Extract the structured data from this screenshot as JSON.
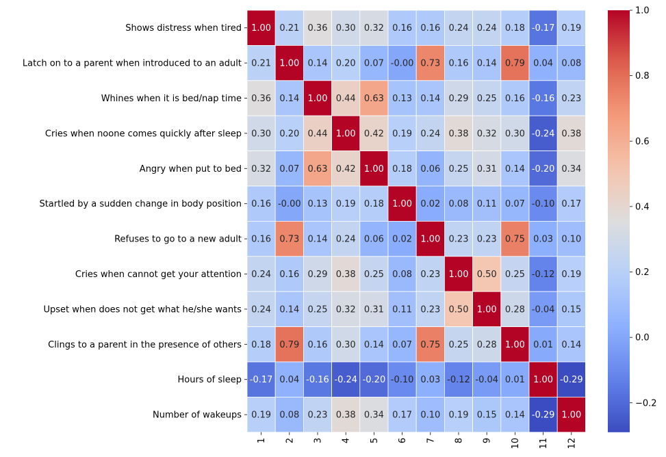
{
  "chart_data": {
    "type": "heatmap",
    "title": "",
    "xlabel": "",
    "ylabel": "",
    "row_labels": [
      "Shows distress when tired",
      "Latch on to a parent when introduced to an adult",
      "Whines when it is bed/nap time",
      "Cries when noone comes quickly after sleep",
      "Angry when put to bed",
      "Startled by a sudden change in body position",
      "Refuses to go to a new adult",
      "Cries when cannot get your attention",
      "Upset when does not get what he/she wants",
      "Clings to a parent in the presence of others",
      "Hours of sleep",
      "Number of wakeups"
    ],
    "col_labels": [
      "1",
      "2",
      "3",
      "4",
      "5",
      "6",
      "7",
      "8",
      "9",
      "10",
      "11",
      "12"
    ],
    "cell_labels": [
      [
        "1.00",
        "0.21",
        "0.36",
        "0.30",
        "0.32",
        "0.16",
        "0.16",
        "0.24",
        "0.24",
        "0.18",
        "-0.17",
        "0.19"
      ],
      [
        "0.21",
        "1.00",
        "0.14",
        "0.20",
        "0.07",
        "-0.00",
        "0.73",
        "0.16",
        "0.14",
        "0.79",
        "0.04",
        "0.08"
      ],
      [
        "0.36",
        "0.14",
        "1.00",
        "0.44",
        "0.63",
        "0.13",
        "0.14",
        "0.29",
        "0.25",
        "0.16",
        "-0.16",
        "0.23"
      ],
      [
        "0.30",
        "0.20",
        "0.44",
        "1.00",
        "0.42",
        "0.19",
        "0.24",
        "0.38",
        "0.32",
        "0.30",
        "-0.24",
        "0.38"
      ],
      [
        "0.32",
        "0.07",
        "0.63",
        "0.42",
        "1.00",
        "0.18",
        "0.06",
        "0.25",
        "0.31",
        "0.14",
        "-0.20",
        "0.34"
      ],
      [
        "0.16",
        "-0.00",
        "0.13",
        "0.19",
        "0.18",
        "1.00",
        "0.02",
        "0.08",
        "0.11",
        "0.07",
        "-0.10",
        "0.17"
      ],
      [
        "0.16",
        "0.73",
        "0.14",
        "0.24",
        "0.06",
        "0.02",
        "1.00",
        "0.23",
        "0.23",
        "0.75",
        "0.03",
        "0.10"
      ],
      [
        "0.24",
        "0.16",
        "0.29",
        "0.38",
        "0.25",
        "0.08",
        "0.23",
        "1.00",
        "0.50",
        "0.25",
        "-0.12",
        "0.19"
      ],
      [
        "0.24",
        "0.14",
        "0.25",
        "0.32",
        "0.31",
        "0.11",
        "0.23",
        "0.50",
        "1.00",
        "0.28",
        "-0.04",
        "0.15"
      ],
      [
        "0.18",
        "0.79",
        "0.16",
        "0.30",
        "0.14",
        "0.07",
        "0.75",
        "0.25",
        "0.28",
        "1.00",
        "0.01",
        "0.14"
      ],
      [
        "-0.17",
        "0.04",
        "-0.16",
        "-0.24",
        "-0.20",
        "-0.10",
        "0.03",
        "-0.12",
        "-0.04",
        "0.01",
        "1.00",
        "-0.29"
      ],
      [
        "0.19",
        "0.08",
        "0.23",
        "0.38",
        "0.34",
        "0.17",
        "0.10",
        "0.19",
        "0.15",
        "0.14",
        "-0.29",
        "1.00"
      ]
    ],
    "colorbar": {
      "colormap": "coolwarm",
      "vmin": -0.29,
      "vmax": 1.0,
      "ticks": [
        "-0.2",
        "0.0",
        "0.2",
        "0.4",
        "0.6",
        "0.8",
        "1.0"
      ]
    }
  }
}
